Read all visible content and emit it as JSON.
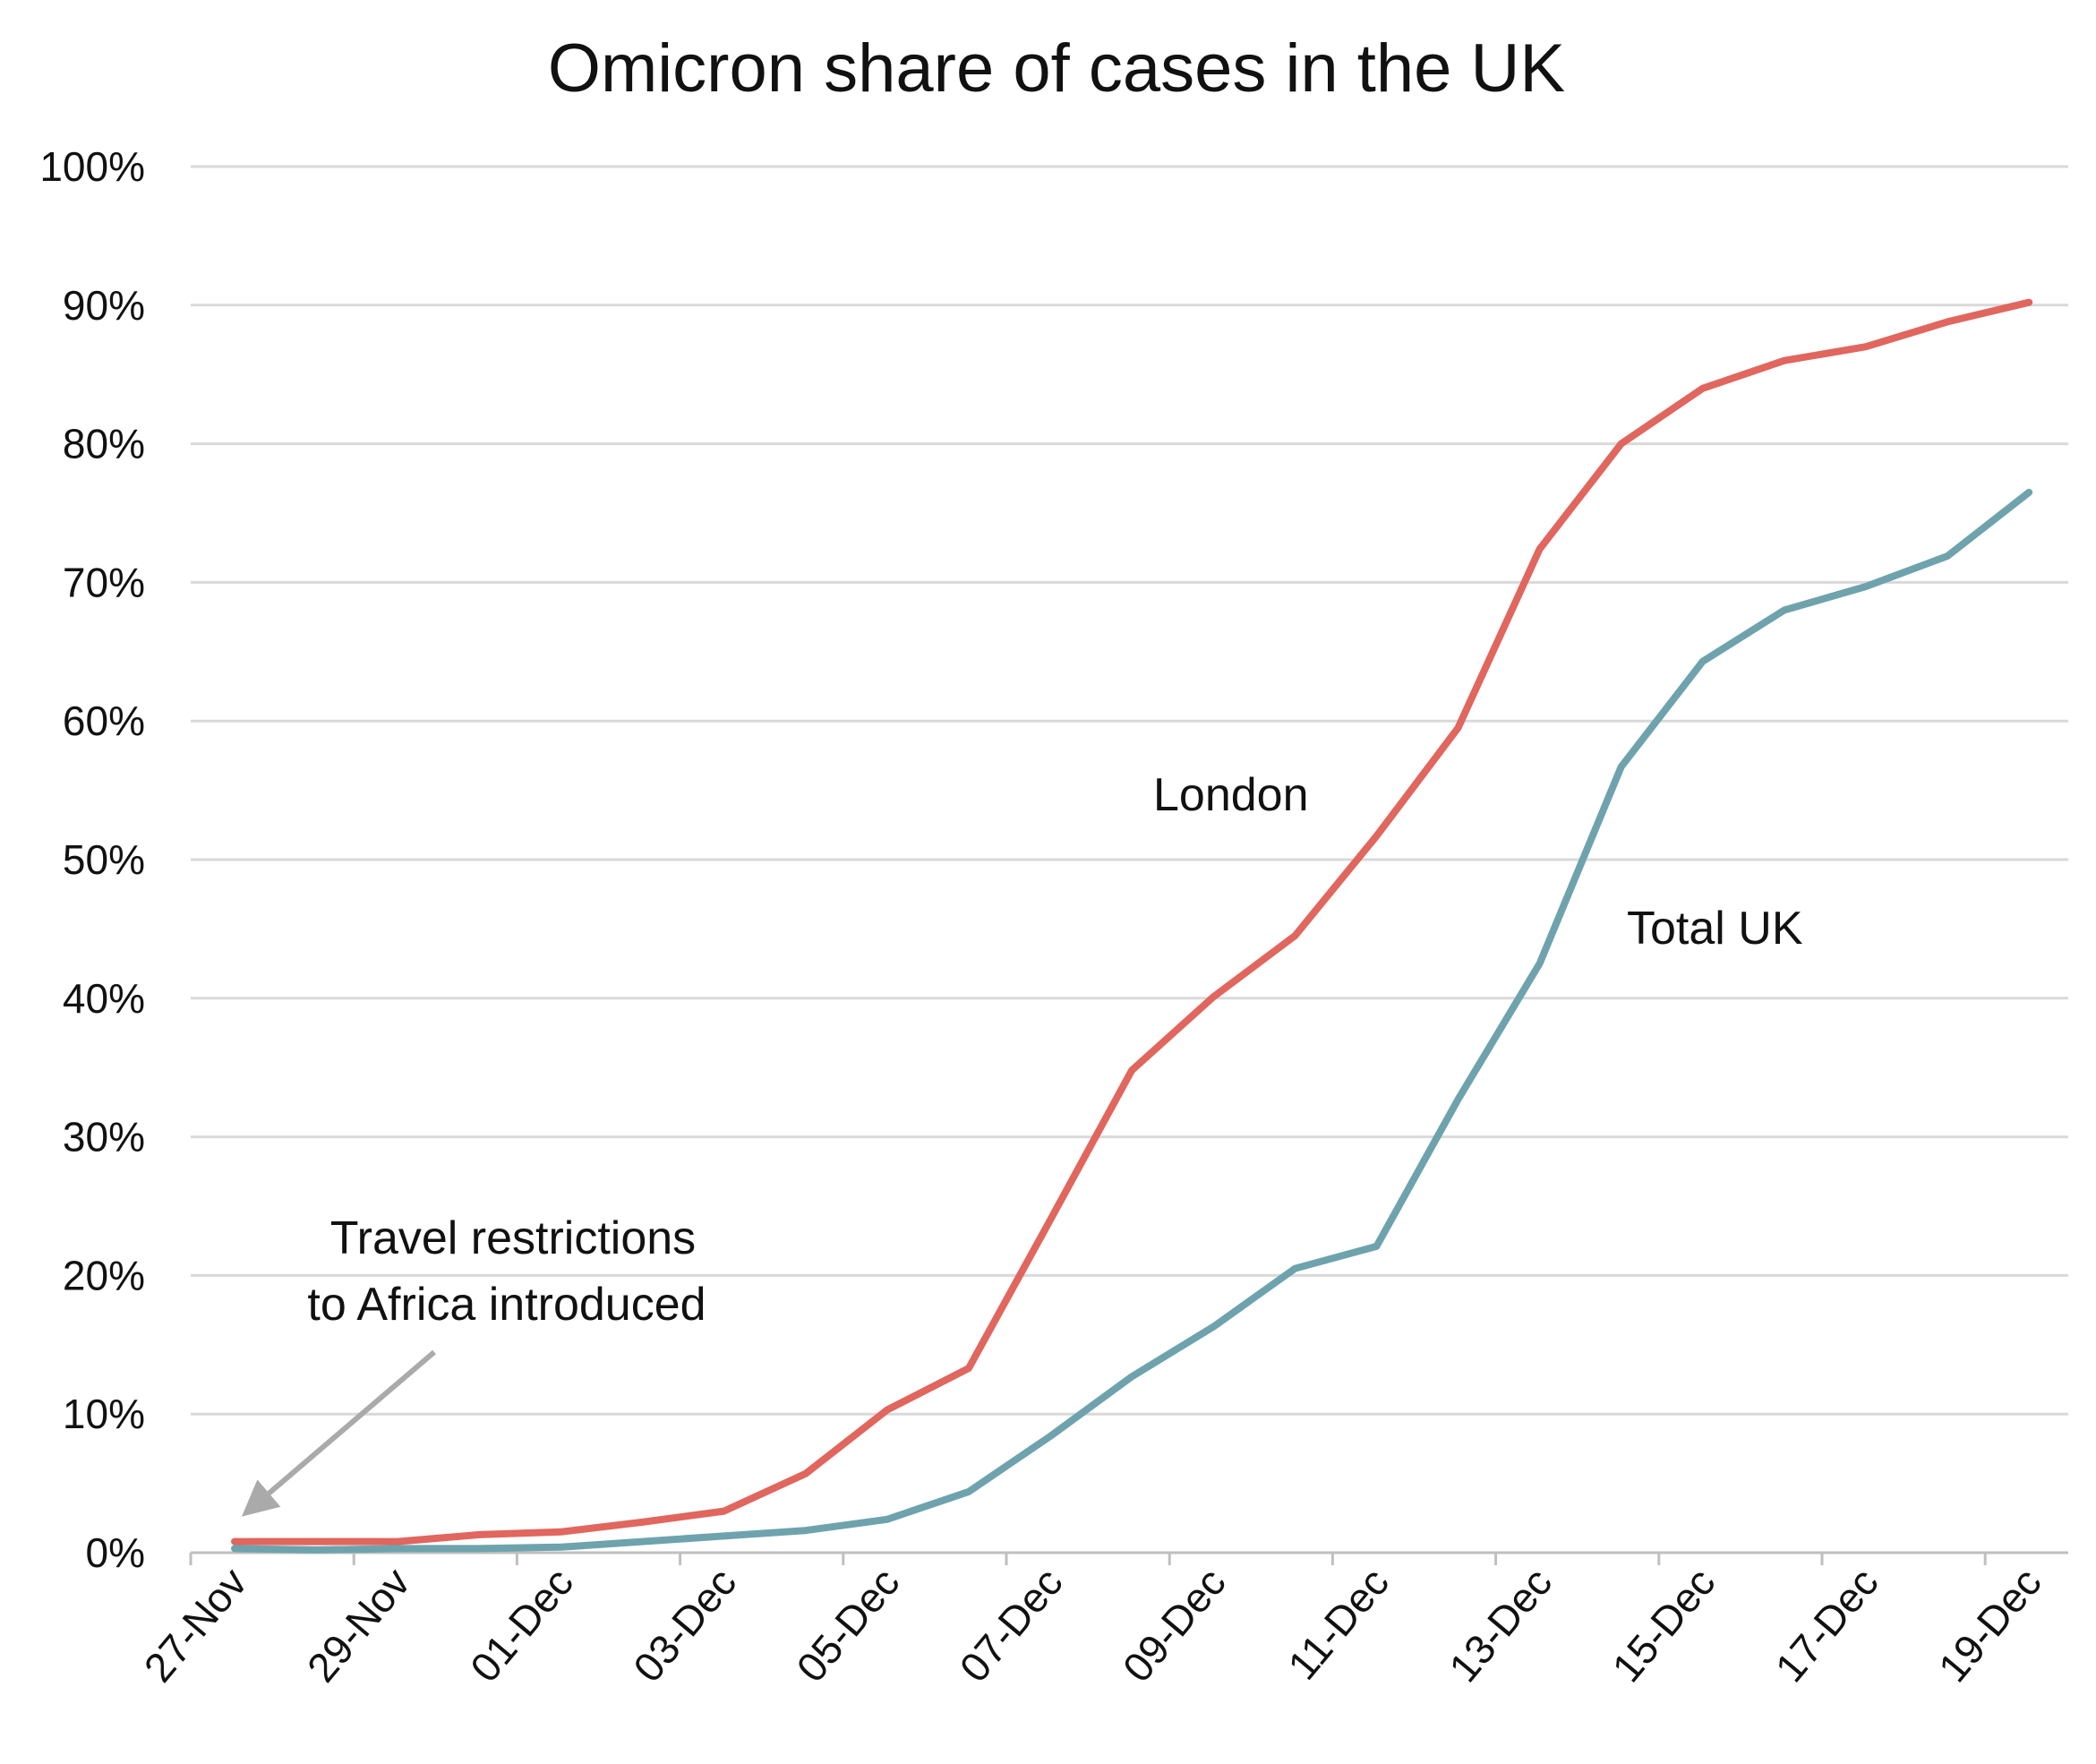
{
  "chart_data": {
    "type": "line",
    "title": "Omicron share of cases in the UK",
    "xlabel": "",
    "ylabel": "",
    "x": [
      "27-Nov",
      "28-Nov",
      "29-Nov",
      "30-Nov",
      "01-Dec",
      "02-Dec",
      "03-Dec",
      "04-Dec",
      "05-Dec",
      "06-Dec",
      "07-Dec",
      "08-Dec",
      "09-Dec",
      "10-Dec",
      "11-Dec",
      "12-Dec",
      "13-Dec",
      "14-Dec",
      "15-Dec",
      "16-Dec",
      "17-Dec",
      "18-Dec",
      "19-Dec"
    ],
    "x_tick_labels": [
      "27-Nov",
      "29-Nov",
      "01-Dec",
      "03-Dec",
      "05-Dec",
      "07-Dec",
      "09-Dec",
      "11-Dec",
      "13-Dec",
      "15-Dec",
      "17-Dec",
      "19-Dec"
    ],
    "ylim": [
      0,
      100
    ],
    "y_ticks": [
      0,
      10,
      20,
      30,
      40,
      50,
      60,
      70,
      80,
      90,
      100
    ],
    "y_tick_format": "%",
    "grid": true,
    "series": [
      {
        "name": "London",
        "color": "#e0665e",
        "values": [
          0.8,
          0.8,
          0.8,
          1.3,
          1.5,
          2.2,
          3.0,
          5.7,
          10.3,
          13.3,
          24.0,
          34.8,
          40.1,
          44.5,
          51.7,
          59.5,
          72.4,
          80.0,
          84.0,
          86.0,
          87.0,
          88.8,
          90.2
        ]
      },
      {
        "name": "Total UK",
        "color": "#6ea3ad",
        "values": [
          0.3,
          0.2,
          0.3,
          0.3,
          0.4,
          0.8,
          1.2,
          1.6,
          2.4,
          4.4,
          8.4,
          12.7,
          16.3,
          20.5,
          22.1,
          32.7,
          42.5,
          56.7,
          64.3,
          68.0,
          69.7,
          71.9,
          76.5
        ]
      }
    ],
    "annotations": [
      {
        "text_line1": "Travel restrictions",
        "text_line2": "to Africa introduced",
        "points_to": "27-Nov",
        "arrow_color": "#aaaaaa"
      }
    ]
  }
}
